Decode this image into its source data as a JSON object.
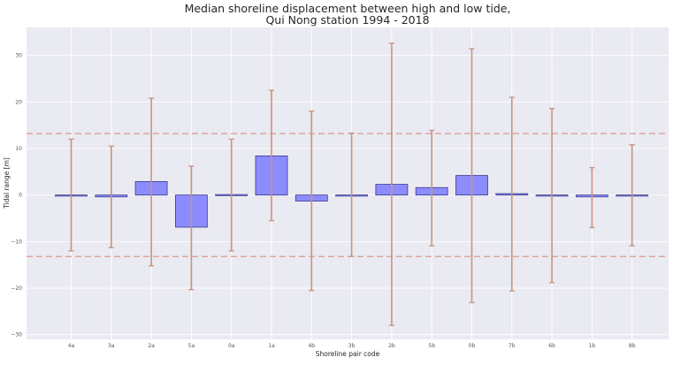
{
  "chart_data": {
    "type": "bar",
    "title": "Median shoreline displacement between high and low tide,",
    "subtitle": "Qui Nong station 1994 - 2018",
    "xlabel": "Shoreline pair code",
    "ylabel": "Tidal range [m]",
    "ylim": [
      -31,
      36
    ],
    "yticks": [
      -30,
      -20,
      -10,
      0,
      10,
      20,
      30
    ],
    "grid": true,
    "categories": [
      "4a",
      "3a",
      "2a",
      "5a",
      "0a",
      "1a",
      "4b",
      "3b",
      "2b",
      "5b",
      "0b",
      "7b",
      "6b",
      "1b",
      "8b"
    ],
    "values": [
      0,
      -0.4,
      2.9,
      -6.9,
      0.1,
      8.4,
      -1.3,
      0,
      2.3,
      1.6,
      4.2,
      0.3,
      -0.2,
      -0.4,
      0
    ],
    "error_low": [
      -12,
      -11.3,
      -15.2,
      -20.3,
      -12,
      -5.5,
      -20.5,
      -13.2,
      -28,
      -10.9,
      -23.1,
      -20.6,
      -18.8,
      -7,
      -10.9
    ],
    "error_high": [
      12,
      10.5,
      20.8,
      6.2,
      12,
      22.5,
      18,
      13.3,
      32.6,
      13.9,
      31.4,
      21,
      18.6,
      5.9,
      10.8
    ],
    "reference_lines": [
      13.2,
      -13.2
    ],
    "colors": {
      "bar_fill": "#8c8cff",
      "bar_edge": "#3a3a8c",
      "error_bar": "#c9957f",
      "reference_line": "#d99a8f",
      "plot_background": "#eaeaf2",
      "grid": "#ffffff"
    }
  }
}
